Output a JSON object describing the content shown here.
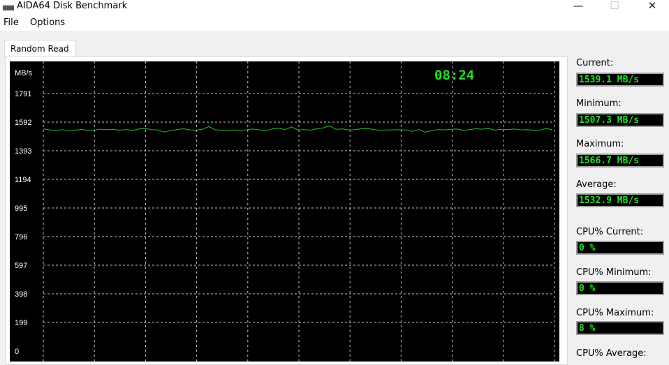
{
  "window": {
    "title": "AIDA64 Disk Benchmark",
    "minimize": "—",
    "maximize": "☐",
    "close": "✕"
  },
  "menu": [
    "File",
    "Options"
  ],
  "tab": "Random Read",
  "clock": "08:24",
  "stats": [
    {
      "label": "Current:",
      "value": "1539.1 MB/s"
    },
    {
      "label": "Minimum:",
      "value": "1507.3 MB/s"
    },
    {
      "label": "Maximum:",
      "value": "1566.7 MB/s"
    },
    {
      "label": "Average:",
      "value": "1532.9 MB/s"
    },
    {
      "label": "CPU% Current:",
      "value": "0 %"
    },
    {
      "label": "CPU% Minimum:",
      "value": "0 %"
    },
    {
      "label": "CPU% Maximum:",
      "value": "8 %"
    },
    {
      "label": "CPU% Average:",
      "value": ""
    }
  ],
  "colors": {
    "line": "#22c022",
    "grid": "#c8c8c8",
    "text_value": "#22e022"
  },
  "chart_data": {
    "type": "line",
    "ylabel": "MB/s",
    "yticks": [
      "1791",
      "1592",
      "1393",
      "1194",
      "995",
      "796",
      "597",
      "398",
      "199",
      "0"
    ],
    "ylim": [
      0,
      1791
    ],
    "grid": true,
    "series": [
      {
        "values": [
          1545,
          1538,
          1532,
          1540,
          1530,
          1536,
          1541,
          1534,
          1537,
          1543,
          1539,
          1542,
          1536,
          1540,
          1535,
          1544,
          1548,
          1540,
          1538,
          1522,
          1534,
          1540,
          1546,
          1538,
          1536,
          1542,
          1561,
          1540,
          1535,
          1531,
          1538,
          1530,
          1540,
          1544,
          1537,
          1532,
          1545,
          1550,
          1540,
          1558,
          1538,
          1540,
          1536,
          1546,
          1552,
          1566,
          1542,
          1545,
          1538,
          1540,
          1546,
          1548,
          1540,
          1535,
          1537,
          1538,
          1539,
          1537,
          1528,
          1540,
          1522,
          1532,
          1540,
          1538,
          1542,
          1544,
          1535,
          1540,
          1546,
          1543,
          1548,
          1536,
          1542,
          1540,
          1545,
          1538,
          1540,
          1536,
          1534,
          1548,
          1539
        ]
      }
    ]
  }
}
